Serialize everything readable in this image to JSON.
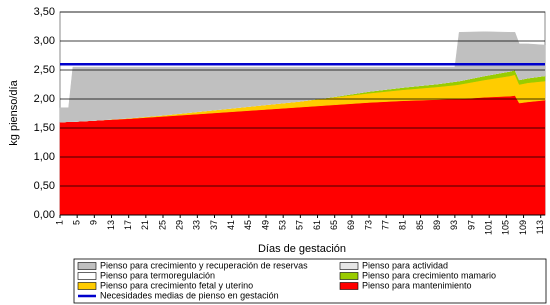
{
  "chart_data": {
    "type": "area",
    "y_label": "kg pienso/día",
    "x_label": "Días de gestación",
    "x": [
      1,
      3,
      4,
      9,
      17,
      25,
      33,
      41,
      49,
      57,
      65,
      73,
      81,
      89,
      93,
      94,
      100,
      106,
      107,
      108,
      110,
      114
    ],
    "xlim": [
      1,
      114
    ],
    "xticks": [
      1,
      5,
      9,
      13,
      17,
      21,
      25,
      29,
      33,
      37,
      41,
      45,
      49,
      53,
      57,
      61,
      65,
      69,
      73,
      77,
      81,
      85,
      89,
      93,
      97,
      101,
      105,
      109,
      113
    ],
    "ylim": [
      0,
      3.5
    ],
    "yticks": [
      {
        "value": 0,
        "label": "0,00"
      },
      {
        "value": 0.5,
        "label": "0,50"
      },
      {
        "value": 1,
        "label": "1,00"
      },
      {
        "value": 1.5,
        "label": "1,50"
      },
      {
        "value": 2,
        "label": "2,00"
      },
      {
        "value": 2.5,
        "label": "2,50"
      },
      {
        "value": 3,
        "label": "3,00"
      },
      {
        "value": 3.5,
        "label": "3,50"
      }
    ],
    "grid": true,
    "legend": "bottom",
    "series": [
      {
        "name": "Pienso para crecimiento y recuperación de reservas",
        "color": "#c0c0c0",
        "values": [
          0.25,
          0.24,
          0.94,
          0.92,
          0.88,
          0.83,
          0.77,
          0.71,
          0.65,
          0.59,
          0.51,
          0.42,
          0.35,
          0.29,
          0.25,
          0.84,
          0.76,
          0.67,
          0.65,
          0.62,
          0.59,
          0.53
        ]
      },
      {
        "name": "Pienso para actividad",
        "color": "#e6e6e6",
        "values": [
          0,
          0,
          0,
          0,
          0,
          0,
          0,
          0,
          0,
          0,
          0,
          0,
          0,
          0,
          0,
          0,
          0,
          0,
          0,
          0,
          0,
          0
        ]
      },
      {
        "name": "Pienso para termoregulación",
        "color": "#ffffff",
        "values": [
          0,
          0,
          0,
          0,
          0,
          0,
          0,
          0,
          0,
          0,
          0,
          0,
          0,
          0,
          0,
          0,
          0,
          0,
          0,
          0,
          0,
          0
        ]
      },
      {
        "name": "Pienso para crecimiento mamario",
        "color": "#99cc00",
        "values": [
          0,
          0,
          0,
          0,
          0,
          0,
          0,
          0,
          0,
          0,
          0.01,
          0.03,
          0.04,
          0.05,
          0.06,
          0.06,
          0.07,
          0.08,
          0.08,
          0.08,
          0.08,
          0.09
        ]
      },
      {
        "name": "Pienso para crecimiento fetal y uterino",
        "color": "#ffcc00",
        "values": [
          0,
          0,
          0,
          0,
          0.01,
          0.02,
          0.04,
          0.06,
          0.08,
          0.1,
          0.13,
          0.16,
          0.19,
          0.22,
          0.24,
          0.25,
          0.3,
          0.35,
          0.36,
          0.32,
          0.33,
          0.33
        ]
      },
      {
        "name": "Pienso para mantenimiento",
        "color": "#ff0000",
        "values": [
          1.6,
          1.61,
          1.61,
          1.63,
          1.66,
          1.7,
          1.74,
          1.78,
          1.82,
          1.86,
          1.9,
          1.94,
          1.97,
          1.99,
          2.0,
          2.0,
          2.03,
          2.05,
          2.06,
          1.93,
          1.95,
          1.98
        ]
      },
      {
        "name": "Necesidades medias de pienso en gestación",
        "color": "#0000cc",
        "type": "line",
        "values": [
          2.6,
          2.6,
          2.6,
          2.6,
          2.6,
          2.6,
          2.6,
          2.6,
          2.6,
          2.6,
          2.6,
          2.6,
          2.6,
          2.6,
          2.6,
          2.6,
          2.6,
          2.6,
          2.6,
          2.6,
          2.6,
          2.6
        ]
      }
    ]
  }
}
